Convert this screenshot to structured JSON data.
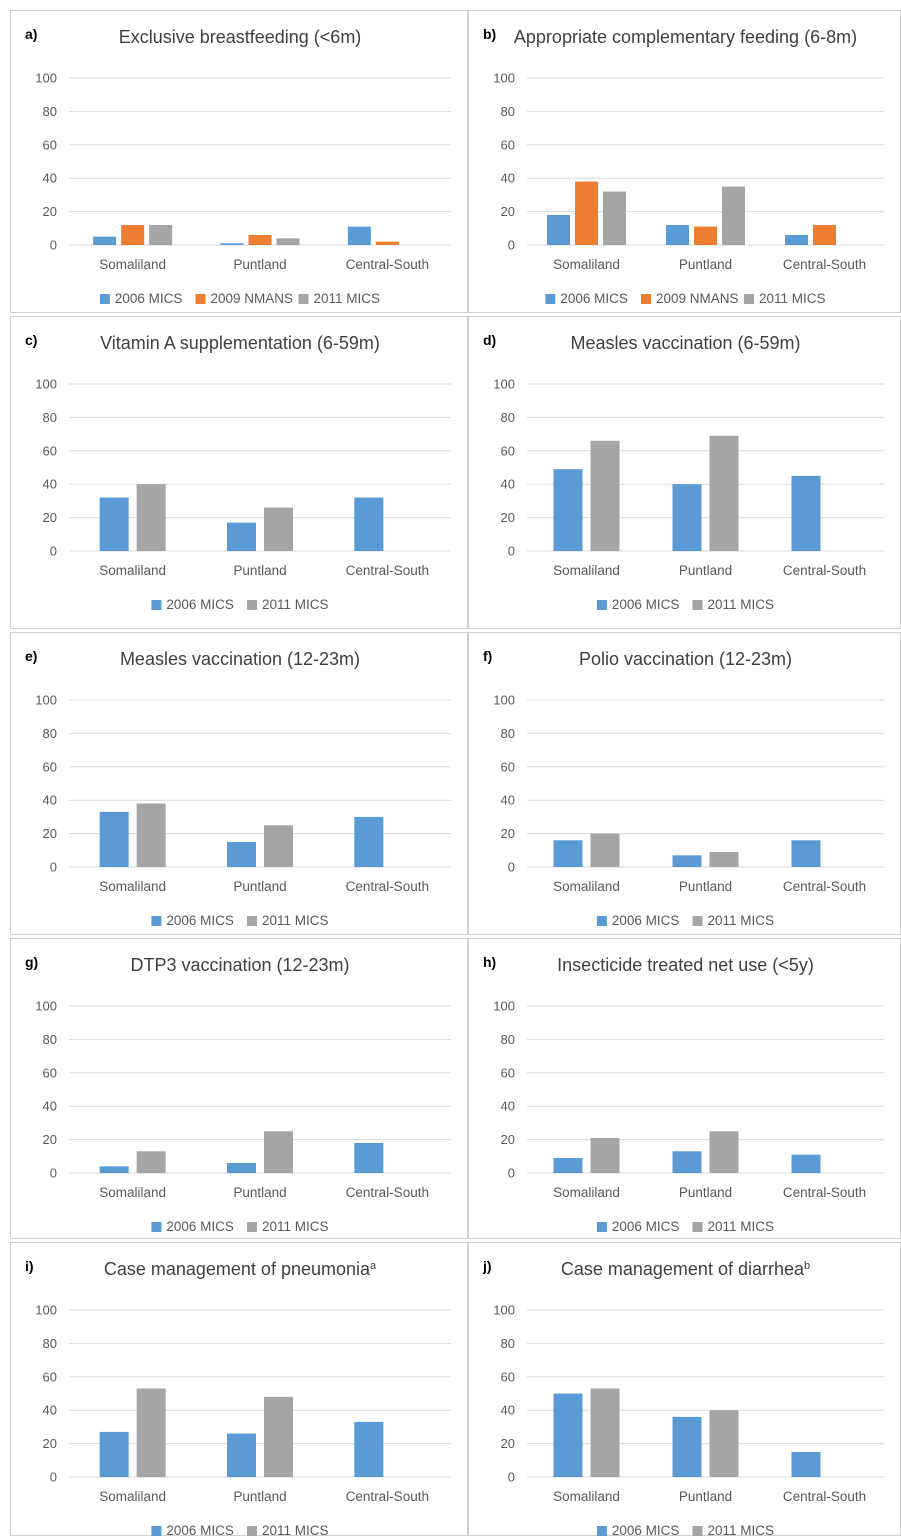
{
  "colors": {
    "2006 MICS": "#5b9bd5",
    "2009 NMANS": "#ed7d31",
    "2011 MICS": "#a5a5a5"
  },
  "chart_data": [
    {
      "id": "a",
      "letter": "a)",
      "type": "bar",
      "title": "Exclusive breastfeeding (<6m)",
      "categories": [
        "Somaliland",
        "Puntland",
        "Central-South"
      ],
      "series": [
        {
          "name": "2006 MICS",
          "values": [
            5,
            1,
            11
          ]
        },
        {
          "name": "2009 NMANS",
          "values": [
            12,
            6,
            2
          ]
        },
        {
          "name": "2011 MICS",
          "values": [
            12,
            4,
            0
          ]
        }
      ],
      "yticks": [
        0,
        20,
        40,
        60,
        80,
        100
      ],
      "ylim": [
        0,
        100
      ],
      "grid": true,
      "legend": "bottom"
    },
    {
      "id": "b",
      "letter": "b)",
      "type": "bar",
      "title": "Appropriate complementary feeding (6-8m)",
      "categories": [
        "Somaliland",
        "Puntland",
        "Central-South"
      ],
      "series": [
        {
          "name": "2006 MICS",
          "values": [
            18,
            12,
            6
          ]
        },
        {
          "name": "2009 NMANS",
          "values": [
            38,
            11,
            12
          ]
        },
        {
          "name": "2011 MICS",
          "values": [
            32,
            35,
            0
          ]
        }
      ],
      "yticks": [
        0,
        20,
        40,
        60,
        80,
        100
      ],
      "ylim": [
        0,
        100
      ],
      "grid": true,
      "legend": "bottom"
    },
    {
      "id": "c",
      "letter": "c)",
      "type": "bar",
      "title": "Vitamin A supplementation (6-59m)",
      "categories": [
        "Somaliland",
        "Puntland",
        "Central-South"
      ],
      "series": [
        {
          "name": "2006 MICS",
          "values": [
            32,
            17,
            32
          ]
        },
        {
          "name": "2011 MICS",
          "values": [
            40,
            26,
            0
          ]
        }
      ],
      "yticks": [
        0,
        20,
        40,
        60,
        80,
        100
      ],
      "ylim": [
        0,
        100
      ],
      "grid": true,
      "legend": "bottom"
    },
    {
      "id": "d",
      "letter": "d)",
      "type": "bar",
      "title": "Measles vaccination (6-59m)",
      "categories": [
        "Somaliland",
        "Puntland",
        "Central-South"
      ],
      "series": [
        {
          "name": "2006 MICS",
          "values": [
            49,
            40,
            45
          ]
        },
        {
          "name": "2011 MICS",
          "values": [
            66,
            69,
            0
          ]
        }
      ],
      "yticks": [
        0,
        20,
        40,
        60,
        80,
        100
      ],
      "ylim": [
        0,
        100
      ],
      "grid": true,
      "legend": "bottom"
    },
    {
      "id": "e",
      "letter": "e)",
      "type": "bar",
      "title": "Measles vaccination (12-23m)",
      "categories": [
        "Somaliland",
        "Puntland",
        "Central-South"
      ],
      "series": [
        {
          "name": "2006 MICS",
          "values": [
            33,
            15,
            30
          ]
        },
        {
          "name": "2011 MICS",
          "values": [
            38,
            25,
            0
          ]
        }
      ],
      "yticks": [
        0,
        20,
        40,
        60,
        80,
        100
      ],
      "ylim": [
        0,
        100
      ],
      "grid": true,
      "legend": "bottom"
    },
    {
      "id": "f",
      "letter": "f)",
      "type": "bar",
      "title": "Polio vaccination (12-23m)",
      "categories": [
        "Somaliland",
        "Puntland",
        "Central-South"
      ],
      "series": [
        {
          "name": "2006 MICS",
          "values": [
            16,
            7,
            16
          ]
        },
        {
          "name": "2011 MICS",
          "values": [
            20,
            9,
            0
          ]
        }
      ],
      "yticks": [
        0,
        20,
        40,
        60,
        80,
        100
      ],
      "ylim": [
        0,
        100
      ],
      "grid": true,
      "legend": "bottom"
    },
    {
      "id": "g",
      "letter": "g)",
      "type": "bar",
      "title": "DTP3 vaccination (12-23m)",
      "categories": [
        "Somaliland",
        "Puntland",
        "Central-South"
      ],
      "series": [
        {
          "name": "2006 MICS",
          "values": [
            4,
            6,
            18
          ]
        },
        {
          "name": "2011 MICS",
          "values": [
            13,
            25,
            0
          ]
        }
      ],
      "yticks": [
        0,
        20,
        40,
        60,
        80,
        100
      ],
      "ylim": [
        0,
        100
      ],
      "grid": true,
      "legend": "bottom"
    },
    {
      "id": "h",
      "letter": "h)",
      "type": "bar",
      "title": "Insecticide treated net use (<5y)",
      "categories": [
        "Somaliland",
        "Puntland",
        "Central-South"
      ],
      "series": [
        {
          "name": "2006 MICS",
          "values": [
            9,
            13,
            11
          ]
        },
        {
          "name": "2011 MICS",
          "values": [
            21,
            25,
            0
          ]
        }
      ],
      "yticks": [
        0,
        20,
        40,
        60,
        80,
        100
      ],
      "ylim": [
        0,
        100
      ],
      "grid": true,
      "legend": "bottom"
    },
    {
      "id": "i",
      "letter": "i)",
      "type": "bar",
      "title": "Case management of pneumonia",
      "title_sup": "a",
      "categories": [
        "Somaliland",
        "Puntland",
        "Central-South"
      ],
      "series": [
        {
          "name": "2006 MICS",
          "values": [
            27,
            26,
            33
          ]
        },
        {
          "name": "2011 MICS",
          "values": [
            53,
            48,
            0
          ]
        }
      ],
      "yticks": [
        0,
        20,
        40,
        60,
        80,
        100
      ],
      "ylim": [
        0,
        100
      ],
      "grid": true,
      "legend": "bottom"
    },
    {
      "id": "j",
      "letter": "j)",
      "type": "bar",
      "title": "Case management of diarrhea",
      "title_sup": "b",
      "categories": [
        "Somaliland",
        "Puntland",
        "Central-South"
      ],
      "series": [
        {
          "name": "2006 MICS",
          "values": [
            50,
            36,
            15
          ]
        },
        {
          "name": "2011 MICS",
          "values": [
            53,
            40,
            0
          ]
        }
      ],
      "yticks": [
        0,
        20,
        40,
        60,
        80,
        100
      ],
      "ylim": [
        0,
        100
      ],
      "grid": true,
      "legend": "bottom"
    }
  ]
}
